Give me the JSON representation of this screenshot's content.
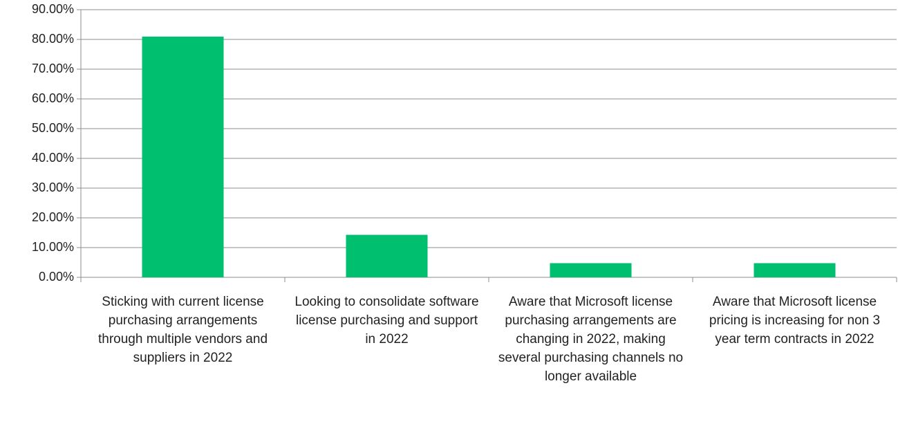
{
  "chart_data": {
    "type": "bar",
    "categories": [
      "Sticking with current license purchasing arrangements through multiple vendors and suppliers in 2022",
      "Looking to consolidate software license purchasing and support in 2022",
      "Aware that Microsoft license purchasing arrangements are changing in 2022, making several purchasing channels no longer available",
      "Aware that Microsoft license pricing is increasing for non 3 year term contracts in 2022"
    ],
    "values": [
      80.95,
      14.29,
      4.76,
      4.76
    ],
    "color": "#00bf6f",
    "ylim": [
      0,
      90
    ],
    "yticks": [
      {
        "value": 0,
        "label": "0.00%"
      },
      {
        "value": 10,
        "label": "10.00%"
      },
      {
        "value": 20,
        "label": "20.00%"
      },
      {
        "value": 30,
        "label": "30.00%"
      },
      {
        "value": 40,
        "label": "40.00%"
      },
      {
        "value": 50,
        "label": "50.00%"
      },
      {
        "value": 60,
        "label": "60.00%"
      },
      {
        "value": 70,
        "label": "70.00%"
      },
      {
        "value": 80,
        "label": "80.00%"
      },
      {
        "value": 90,
        "label": "90.00%"
      }
    ],
    "grid": true
  }
}
